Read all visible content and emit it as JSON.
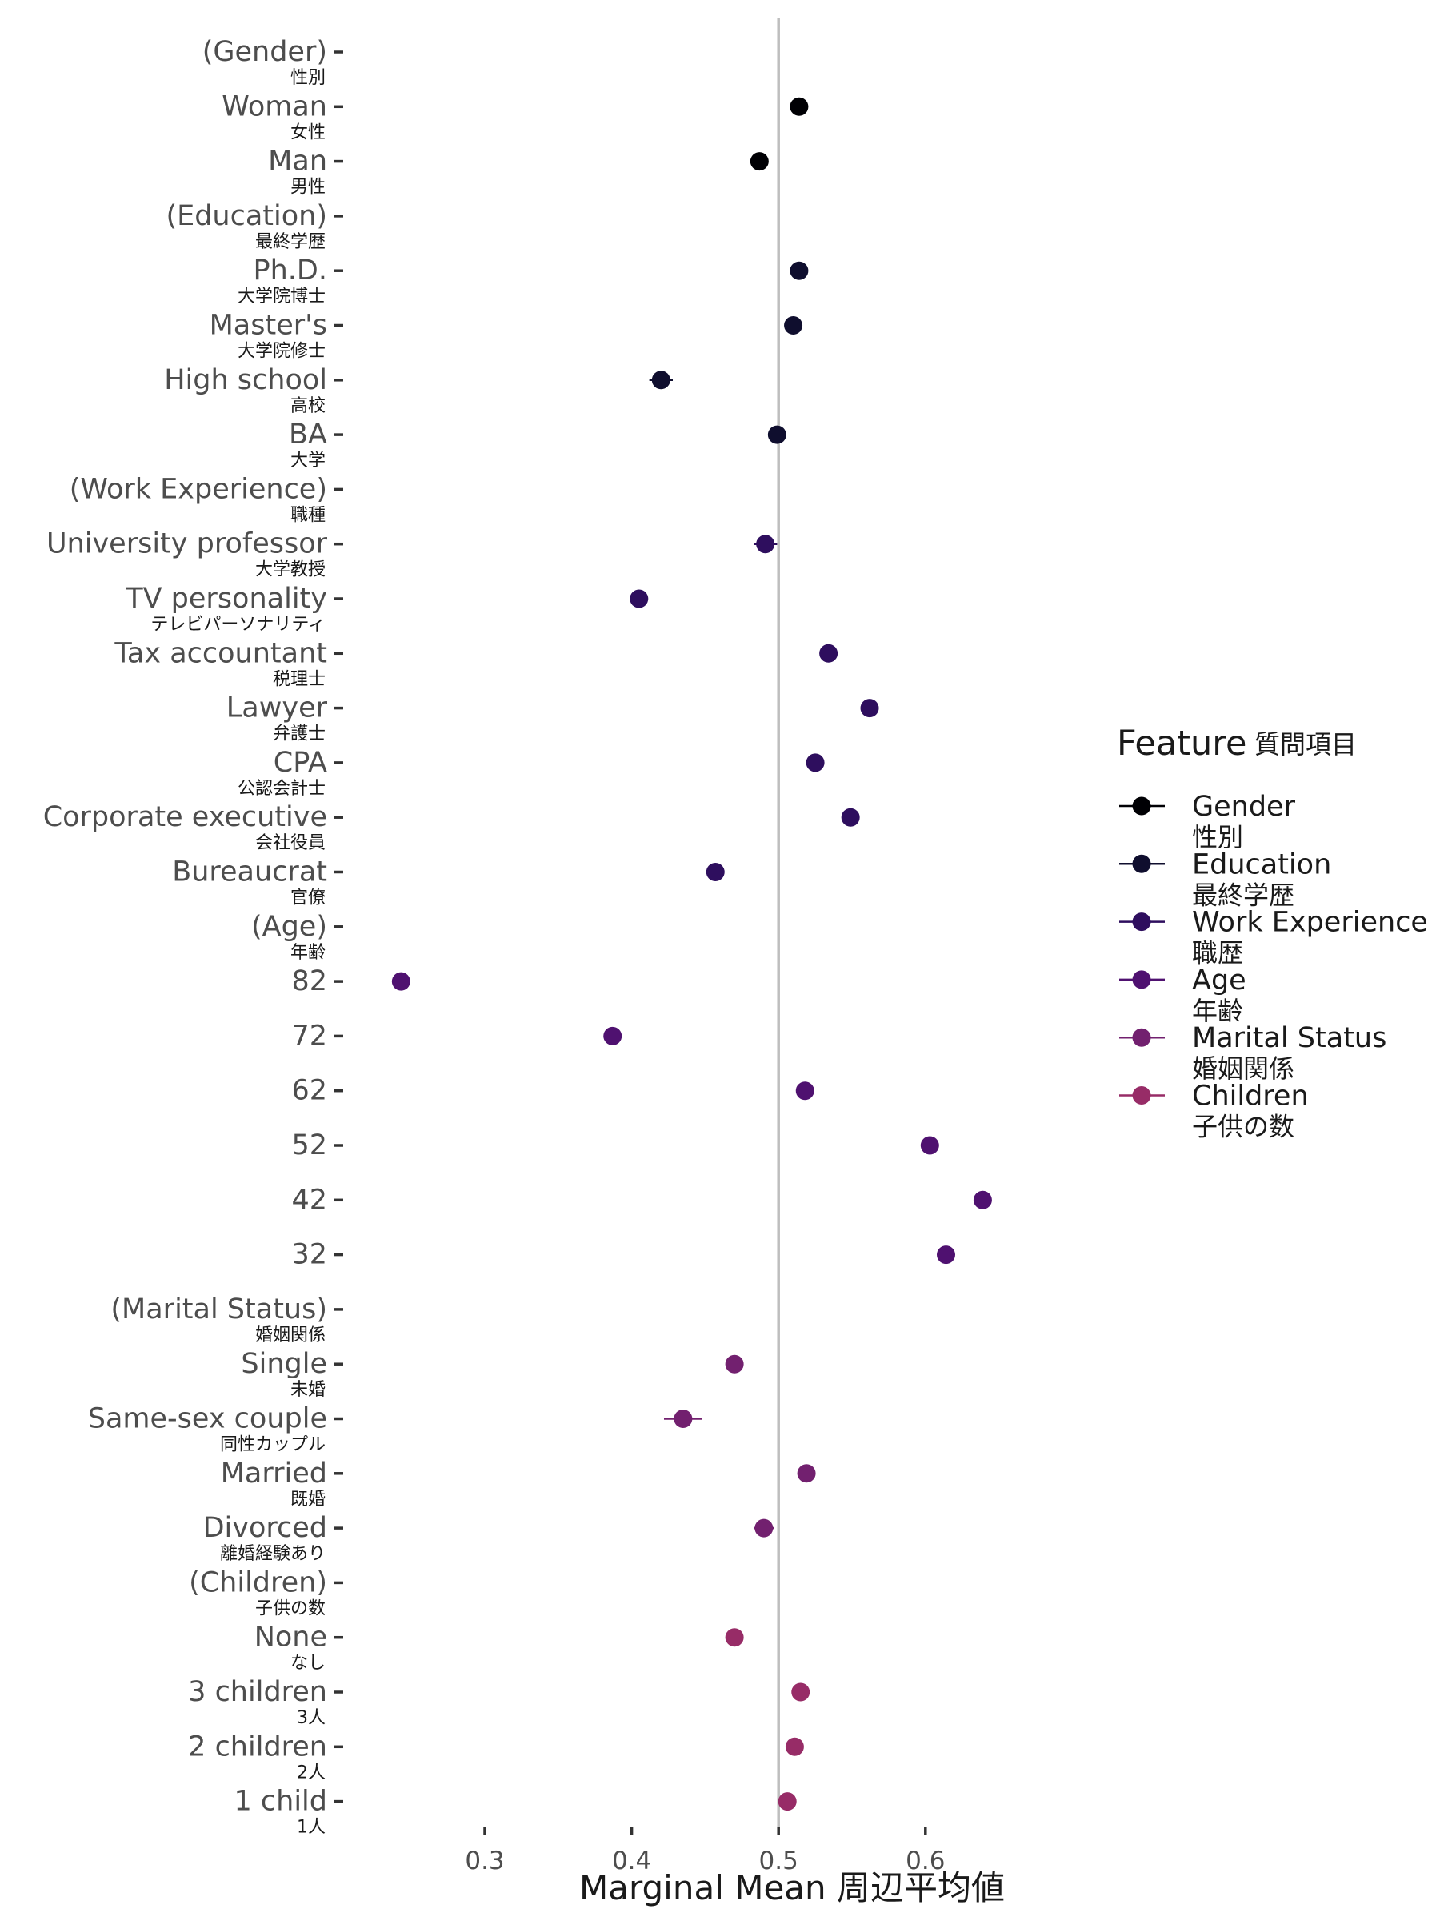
{
  "chart_data": {
    "type": "scatter",
    "title": "",
    "xlabel": "Marginal Mean 周辺平均値",
    "ylabel": "",
    "xlim": [
      0.2,
      0.7
    ],
    "xticks": [
      0.3,
      0.4,
      0.5,
      0.6
    ],
    "xtick_labels": [
      "0.3",
      "0.4",
      "0.5",
      "0.6"
    ],
    "reference_line": 0.5,
    "legend": {
      "title": "Feature",
      "title_ja": "質問項目",
      "placement": "right",
      "entries": [
        {
          "en": "Gender",
          "ja": "性別",
          "color": "#000004"
        },
        {
          "en": "Education",
          "ja": "最終学歴",
          "color": "#0f0e2e"
        },
        {
          "en": "Work Experience",
          "ja": "職歴",
          "color": "#2e0e5e"
        },
        {
          "en": "Age",
          "ja": "年齢",
          "color": "#4f1170"
        },
        {
          "en": "Marital Status",
          "ja": "婚姻関係",
          "color": "#72206f"
        },
        {
          "en": "Children",
          "ja": "子供の数",
          "color": "#972c67"
        }
      ]
    },
    "rows": [
      {
        "en": "(Gender)",
        "ja": "性別",
        "header": true
      },
      {
        "en": "Woman",
        "ja": "女性",
        "group": "Gender",
        "value": 0.514,
        "ci": [
          0.509,
          0.519
        ]
      },
      {
        "en": "Man",
        "ja": "男性",
        "group": "Gender",
        "value": 0.487,
        "ci": [
          0.482,
          0.492
        ]
      },
      {
        "en": "(Education)",
        "ja": "最終学歴",
        "header": true
      },
      {
        "en": "Ph.D.",
        "ja": "大学院博士",
        "group": "Education",
        "value": 0.514,
        "ci": [
          0.508,
          0.52
        ]
      },
      {
        "en": "Master's",
        "ja": "大学院修士",
        "group": "Education",
        "value": 0.51,
        "ci": [
          0.504,
          0.516
        ]
      },
      {
        "en": "High school",
        "ja": "高校",
        "group": "Education",
        "value": 0.42,
        "ci": [
          0.412,
          0.428
        ]
      },
      {
        "en": "BA",
        "ja": "大学",
        "group": "Education",
        "value": 0.499,
        "ci": [
          0.493,
          0.505
        ]
      },
      {
        "en": "(Work Experience)",
        "ja": "職種",
        "header": true
      },
      {
        "en": "University professor",
        "ja": "大学教授",
        "group": "Work Experience",
        "value": 0.491,
        "ci": [
          0.483,
          0.499
        ]
      },
      {
        "en": "TV personality",
        "ja": "テレビパーソナリティ",
        "group": "Work Experience",
        "value": 0.405,
        "ci": [
          0.399,
          0.411
        ]
      },
      {
        "en": "Tax accountant",
        "ja": "税理士",
        "group": "Work Experience",
        "value": 0.534,
        "ci": [
          0.528,
          0.54
        ]
      },
      {
        "en": "Lawyer",
        "ja": "弁護士",
        "group": "Work Experience",
        "value": 0.562,
        "ci": [
          0.556,
          0.568
        ]
      },
      {
        "en": "CPA",
        "ja": "公認会計士",
        "group": "Work Experience",
        "value": 0.525,
        "ci": [
          0.519,
          0.531
        ]
      },
      {
        "en": "Corporate executive",
        "ja": "会社役員",
        "group": "Work Experience",
        "value": 0.549,
        "ci": [
          0.543,
          0.555
        ]
      },
      {
        "en": "Bureaucrat",
        "ja": "官僚",
        "group": "Work Experience",
        "value": 0.457,
        "ci": [
          0.451,
          0.463
        ]
      },
      {
        "en": "(Age)",
        "ja": "年齢",
        "header": true
      },
      {
        "en": "82",
        "ja": "",
        "group": "Age",
        "value": 0.243,
        "ci": [
          0.237,
          0.249
        ]
      },
      {
        "en": "72",
        "ja": "",
        "group": "Age",
        "value": 0.387,
        "ci": [
          0.381,
          0.393
        ]
      },
      {
        "en": "62",
        "ja": "",
        "group": "Age",
        "value": 0.518,
        "ci": [
          0.512,
          0.524
        ]
      },
      {
        "en": "52",
        "ja": "",
        "group": "Age",
        "value": 0.603,
        "ci": [
          0.597,
          0.609
        ]
      },
      {
        "en": "42",
        "ja": "",
        "group": "Age",
        "value": 0.639,
        "ci": [
          0.633,
          0.645
        ]
      },
      {
        "en": "32",
        "ja": "",
        "group": "Age",
        "value": 0.614,
        "ci": [
          0.608,
          0.62
        ]
      },
      {
        "en": "(Marital Status)",
        "ja": "婚姻関係",
        "header": true
      },
      {
        "en": "Single",
        "ja": "未婚",
        "group": "Marital Status",
        "value": 0.47,
        "ci": [
          0.464,
          0.476
        ]
      },
      {
        "en": "Same-sex couple",
        "ja": "同性カップル",
        "group": "Marital Status",
        "value": 0.435,
        "ci": [
          0.422,
          0.448
        ]
      },
      {
        "en": "Married",
        "ja": "既婚",
        "group": "Marital Status",
        "value": 0.519,
        "ci": [
          0.513,
          0.525
        ]
      },
      {
        "en": "Divorced",
        "ja": "離婚経験あり",
        "group": "Marital Status",
        "value": 0.49,
        "ci": [
          0.483,
          0.497
        ]
      },
      {
        "en": "(Children)",
        "ja": "子供の数",
        "header": true
      },
      {
        "en": "None",
        "ja": "なし",
        "group": "Children",
        "value": 0.47,
        "ci": [
          0.464,
          0.476
        ]
      },
      {
        "en": "3 children",
        "ja": "3人",
        "group": "Children",
        "value": 0.515,
        "ci": [
          0.509,
          0.521
        ]
      },
      {
        "en": "2 children",
        "ja": "2人",
        "group": "Children",
        "value": 0.511,
        "ci": [
          0.505,
          0.517
        ]
      },
      {
        "en": "1 child",
        "ja": "1人",
        "group": "Children",
        "value": 0.506,
        "ci": [
          0.5,
          0.512
        ]
      }
    ]
  }
}
